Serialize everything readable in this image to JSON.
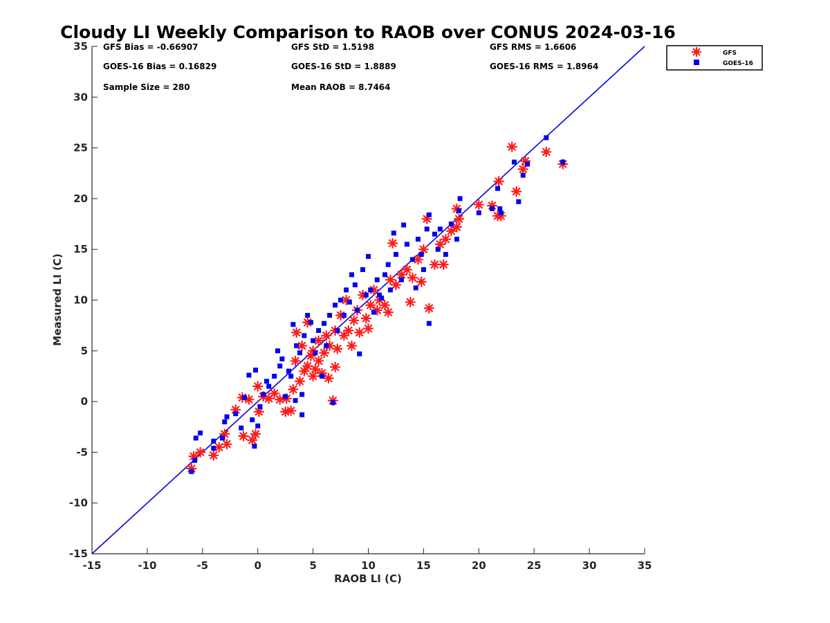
{
  "chart_data": {
    "type": "scatter",
    "title": "Cloudy LI Weekly Comparison to RAOB over CONUS 2024-03-16",
    "xlabel": "RAOB LI (C)",
    "ylabel": "Measured LI (C)",
    "xlim": [
      -15,
      35
    ],
    "ylim": [
      -15,
      35
    ],
    "xticks": [
      -15,
      -10,
      -5,
      0,
      5,
      10,
      15,
      20,
      25,
      30,
      35
    ],
    "yticks": [
      -15,
      -10,
      -5,
      0,
      5,
      10,
      15,
      20,
      25,
      30,
      35
    ],
    "grid": false,
    "legend_position": "outside-top-right",
    "reference_line": {
      "x": [
        -15,
        35
      ],
      "y": [
        -15,
        35
      ],
      "color": "#0000dd"
    },
    "stats": [
      "GFS Bias = -0.66907",
      "GFS StD = 1.5198",
      "GFS RMS = 1.6606",
      "GOES-16 Bias = 0.16829",
      "GOES-16 StD = 1.8889",
      "GOES-16 RMS = 1.8964",
      "Sample Size = 280",
      "Mean RAOB = 8.7464"
    ],
    "series": [
      {
        "name": "GFS",
        "marker": "asterisk",
        "color": "#ff1a1a",
        "points": [
          [
            -6.0,
            -6.6
          ],
          [
            -5.8,
            -5.4
          ],
          [
            -5.2,
            -5.0
          ],
          [
            -4.0,
            -5.3
          ],
          [
            -3.5,
            -4.5
          ],
          [
            -3.0,
            -3.2
          ],
          [
            -2.8,
            -4.2
          ],
          [
            -2.0,
            -0.8
          ],
          [
            -1.4,
            0.4
          ],
          [
            -1.3,
            -3.4
          ],
          [
            -0.8,
            0.2
          ],
          [
            -0.5,
            -3.8
          ],
          [
            -0.2,
            -3.2
          ],
          [
            0.0,
            1.5
          ],
          [
            0.1,
            -1.0
          ],
          [
            0.5,
            0.5
          ],
          [
            1.0,
            0.3
          ],
          [
            1.5,
            0.8
          ],
          [
            2.0,
            0.2
          ],
          [
            2.5,
            -1.0
          ],
          [
            3.0,
            -0.9
          ],
          [
            2.6,
            0.3
          ],
          [
            3.2,
            1.2
          ],
          [
            3.4,
            4.0
          ],
          [
            3.5,
            6.8
          ],
          [
            3.8,
            2.0
          ],
          [
            4.0,
            5.5
          ],
          [
            4.2,
            3.0
          ],
          [
            4.5,
            3.5
          ],
          [
            4.5,
            7.8
          ],
          [
            4.8,
            4.5
          ],
          [
            5.0,
            2.5
          ],
          [
            5.0,
            5.0
          ],
          [
            5.2,
            3.2
          ],
          [
            5.5,
            4.0
          ],
          [
            5.5,
            6.0
          ],
          [
            5.8,
            2.8
          ],
          [
            6.0,
            4.8
          ],
          [
            6.2,
            6.5
          ],
          [
            6.4,
            2.3
          ],
          [
            6.5,
            5.5
          ],
          [
            6.8,
            0.1
          ],
          [
            7.0,
            3.4
          ],
          [
            7.0,
            7.0
          ],
          [
            7.2,
            5.2
          ],
          [
            7.5,
            8.5
          ],
          [
            7.8,
            6.5
          ],
          [
            8.0,
            10.0
          ],
          [
            8.2,
            7.0
          ],
          [
            8.5,
            5.5
          ],
          [
            8.7,
            8.0
          ],
          [
            9.0,
            9.0
          ],
          [
            9.2,
            6.8
          ],
          [
            9.5,
            10.5
          ],
          [
            9.8,
            8.2
          ],
          [
            10.0,
            7.2
          ],
          [
            10.2,
            9.5
          ],
          [
            10.5,
            11.0
          ],
          [
            10.8,
            9.0
          ],
          [
            11.0,
            10.0
          ],
          [
            11.5,
            9.5
          ],
          [
            11.8,
            8.8
          ],
          [
            12.0,
            12.0
          ],
          [
            12.2,
            15.6
          ],
          [
            12.5,
            11.5
          ],
          [
            13.0,
            12.5
          ],
          [
            13.5,
            13.0
          ],
          [
            13.8,
            9.8
          ],
          [
            14.0,
            12.2
          ],
          [
            14.5,
            14.0
          ],
          [
            14.8,
            11.8
          ],
          [
            15.0,
            15.0
          ],
          [
            15.3,
            18.0
          ],
          [
            15.5,
            9.2
          ],
          [
            16.0,
            13.5
          ],
          [
            16.5,
            15.5
          ],
          [
            16.8,
            13.5
          ],
          [
            17.0,
            16.0
          ],
          [
            17.5,
            16.8
          ],
          [
            18.0,
            17.2
          ],
          [
            18.0,
            19.0
          ],
          [
            18.2,
            18.0
          ],
          [
            20.0,
            19.4
          ],
          [
            21.2,
            19.3
          ],
          [
            21.7,
            18.3
          ],
          [
            21.8,
            21.7
          ],
          [
            22.0,
            18.3
          ],
          [
            23.0,
            25.1
          ],
          [
            23.4,
            20.7
          ],
          [
            24.0,
            22.9
          ],
          [
            24.2,
            23.7
          ],
          [
            26.1,
            24.6
          ],
          [
            27.6,
            23.4
          ]
        ]
      },
      {
        "name": "GOES-16",
        "marker": "square",
        "color": "#0000ee",
        "points": [
          [
            -6.0,
            -6.9
          ],
          [
            -5.7,
            -5.8
          ],
          [
            -5.6,
            -3.6
          ],
          [
            -5.2,
            -3.1
          ],
          [
            -4.0,
            -3.9
          ],
          [
            -4.0,
            -4.6
          ],
          [
            -3.2,
            -3.6
          ],
          [
            -3.0,
            -2.0
          ],
          [
            -2.8,
            -1.5
          ],
          [
            -2.0,
            -1.2
          ],
          [
            -1.5,
            -2.6
          ],
          [
            -1.2,
            0.4
          ],
          [
            -0.8,
            2.6
          ],
          [
            -0.5,
            -1.8
          ],
          [
            -0.3,
            -4.4
          ],
          [
            -0.2,
            3.1
          ],
          [
            0.0,
            -2.4
          ],
          [
            0.2,
            -0.5
          ],
          [
            0.5,
            0.7
          ],
          [
            0.8,
            2.0
          ],
          [
            1.0,
            1.5
          ],
          [
            1.5,
            2.5
          ],
          [
            1.8,
            5.0
          ],
          [
            2.0,
            3.5
          ],
          [
            2.2,
            4.2
          ],
          [
            2.5,
            0.5
          ],
          [
            2.8,
            3.0
          ],
          [
            3.0,
            2.5
          ],
          [
            3.2,
            7.6
          ],
          [
            3.4,
            0.1
          ],
          [
            3.5,
            5.5
          ],
          [
            3.8,
            4.8
          ],
          [
            4.0,
            0.7
          ],
          [
            4.0,
            -1.3
          ],
          [
            4.2,
            6.5
          ],
          [
            4.5,
            8.5
          ],
          [
            4.8,
            7.8
          ],
          [
            5.0,
            6.0
          ],
          [
            5.2,
            4.8
          ],
          [
            5.5,
            7.0
          ],
          [
            5.8,
            2.5
          ],
          [
            6.0,
            7.7
          ],
          [
            6.2,
            5.5
          ],
          [
            6.5,
            8.5
          ],
          [
            6.8,
            -0.1
          ],
          [
            7.0,
            9.5
          ],
          [
            7.2,
            7.0
          ],
          [
            7.5,
            10.0
          ],
          [
            7.8,
            8.5
          ],
          [
            8.0,
            11.0
          ],
          [
            8.3,
            9.8
          ],
          [
            8.5,
            12.5
          ],
          [
            8.8,
            11.5
          ],
          [
            9.0,
            9.0
          ],
          [
            9.2,
            4.7
          ],
          [
            9.5,
            13.0
          ],
          [
            9.8,
            10.5
          ],
          [
            10.0,
            14.3
          ],
          [
            10.2,
            11.0
          ],
          [
            10.5,
            8.8
          ],
          [
            10.8,
            12.0
          ],
          [
            11.0,
            10.5
          ],
          [
            11.2,
            10.2
          ],
          [
            11.5,
            12.5
          ],
          [
            11.8,
            13.5
          ],
          [
            12.0,
            11.0
          ],
          [
            12.3,
            16.6
          ],
          [
            12.5,
            14.5
          ],
          [
            13.0,
            12.0
          ],
          [
            13.2,
            17.4
          ],
          [
            13.5,
            15.5
          ],
          [
            14.0,
            14.0
          ],
          [
            14.3,
            11.2
          ],
          [
            14.5,
            16.0
          ],
          [
            14.8,
            14.5
          ],
          [
            15.0,
            13.0
          ],
          [
            15.3,
            17.0
          ],
          [
            15.5,
            18.4
          ],
          [
            15.5,
            7.7
          ],
          [
            16.0,
            16.5
          ],
          [
            16.3,
            15.0
          ],
          [
            16.5,
            17.0
          ],
          [
            17.0,
            14.5
          ],
          [
            17.5,
            17.5
          ],
          [
            18.0,
            16.0
          ],
          [
            18.2,
            18.8
          ],
          [
            18.3,
            20.0
          ],
          [
            20.0,
            18.6
          ],
          [
            21.2,
            19.0
          ],
          [
            21.7,
            21.0
          ],
          [
            21.9,
            19.0
          ],
          [
            22.0,
            18.6
          ],
          [
            23.2,
            23.6
          ],
          [
            23.6,
            19.7
          ],
          [
            24.0,
            22.3
          ],
          [
            24.4,
            23.4
          ],
          [
            26.1,
            26.0
          ],
          [
            27.6,
            23.6
          ]
        ]
      }
    ]
  }
}
